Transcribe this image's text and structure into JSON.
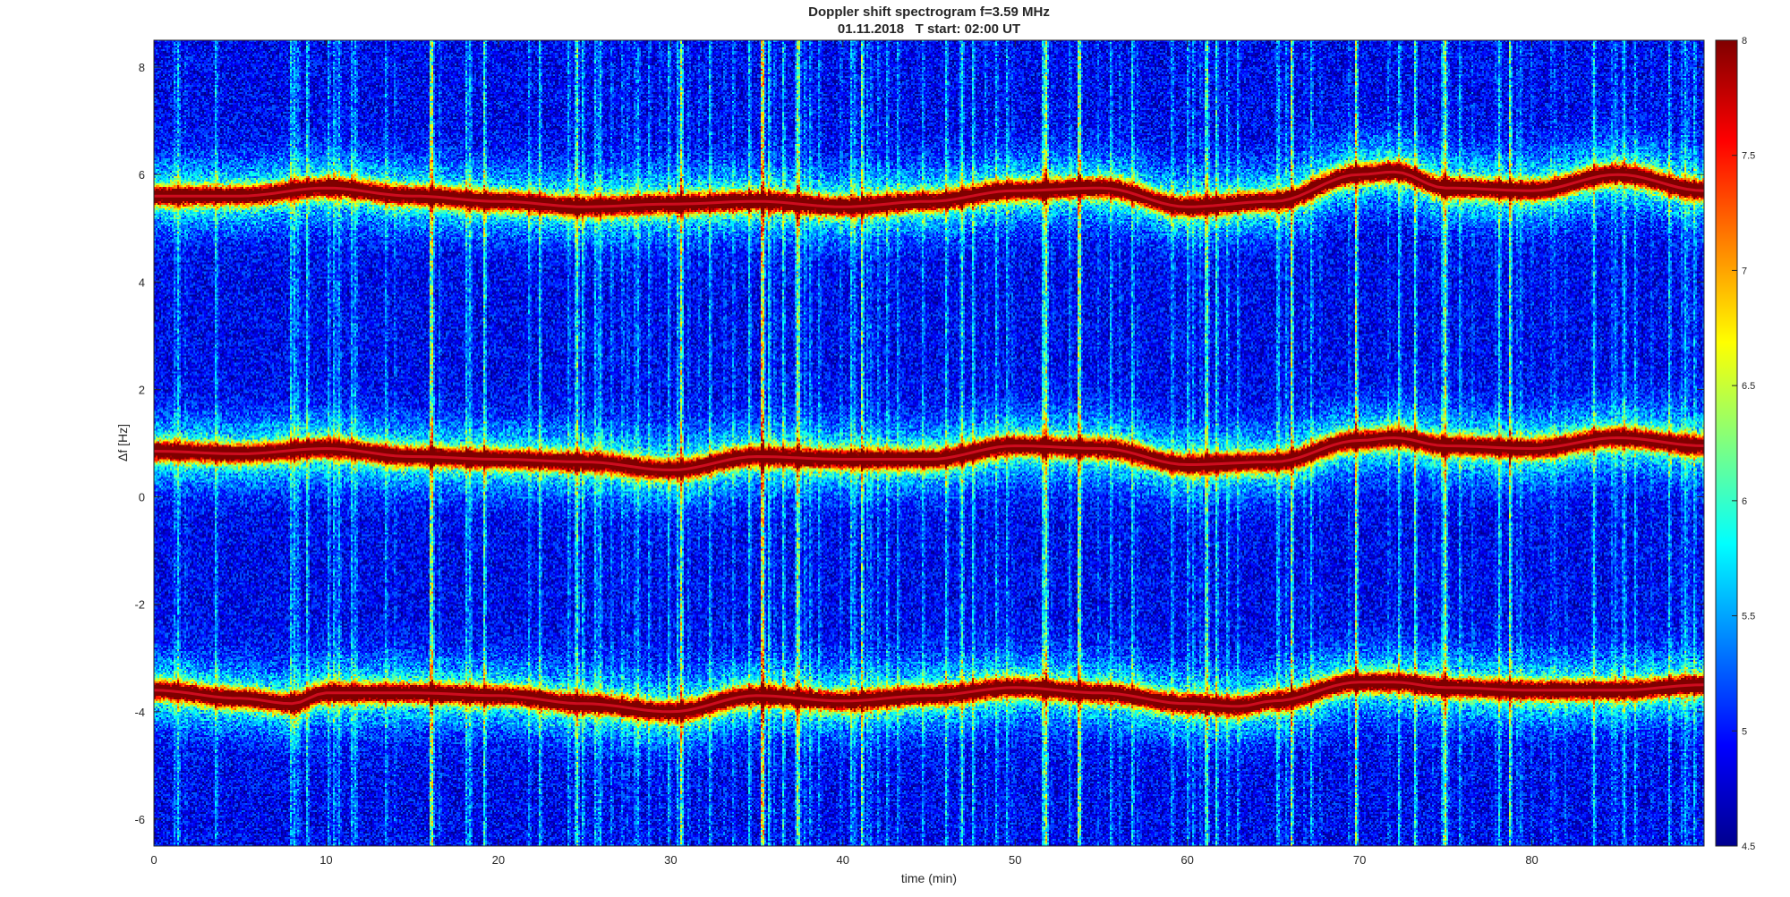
{
  "chart_data": {
    "type": "heatmap",
    "title": "Doppler shift spectrogram f=3.59 MHz",
    "subtitle": "01.11.2018   T start: 02:00 UT",
    "xlabel": "time (min)",
    "ylabel": "Δf [Hz]",
    "xlim": [
      0,
      90
    ],
    "ylim": [
      -6.5,
      8.5
    ],
    "xticks": [
      "0",
      "10",
      "20",
      "30",
      "40",
      "50",
      "60",
      "70",
      "80"
    ],
    "yticks": [
      "-6",
      "-4",
      "-2",
      "0",
      "2",
      "4",
      "6",
      "8"
    ],
    "colorbar": {
      "colormap": "jet",
      "range": [
        4.5,
        8
      ],
      "ticks": [
        "4.5",
        "5",
        "5.5",
        "6",
        "6.5",
        "7",
        "7.5",
        "8"
      ]
    },
    "series": [
      {
        "x": [
          0,
          5,
          10,
          15,
          20,
          25,
          30,
          35,
          40,
          45,
          50,
          55,
          60,
          65,
          70,
          72,
          75,
          80,
          85,
          90
        ],
        "values": [
          5.6,
          5.6,
          5.75,
          5.6,
          5.5,
          5.4,
          5.45,
          5.5,
          5.4,
          5.5,
          5.7,
          5.75,
          5.4,
          5.5,
          6.0,
          6.05,
          5.75,
          5.7,
          6.0,
          5.7
        ]
      },
      {
        "x": [
          0,
          5,
          10,
          15,
          20,
          25,
          30,
          35,
          40,
          45,
          50,
          55,
          60,
          65,
          70,
          72,
          75,
          80,
          85,
          90
        ],
        "values": [
          0.85,
          0.8,
          0.9,
          0.75,
          0.7,
          0.65,
          0.5,
          0.75,
          0.7,
          0.7,
          0.95,
          0.9,
          0.6,
          0.65,
          1.05,
          1.1,
          0.95,
          0.9,
          1.1,
          0.95
        ]
      },
      {
        "x": [
          0,
          5,
          8,
          10,
          15,
          20,
          25,
          30,
          35,
          40,
          45,
          50,
          55,
          60,
          63,
          65,
          70,
          72,
          75,
          80,
          85,
          90
        ],
        "values": [
          -3.6,
          -3.75,
          -3.85,
          -3.65,
          -3.65,
          -3.7,
          -3.85,
          -4.0,
          -3.7,
          -3.8,
          -3.7,
          -3.55,
          -3.65,
          -3.85,
          -3.9,
          -3.8,
          -3.45,
          -3.45,
          -3.55,
          -3.6,
          -3.6,
          -3.5
        ]
      }
    ],
    "background_level": 4.9,
    "trace_peak_level": 8
  }
}
